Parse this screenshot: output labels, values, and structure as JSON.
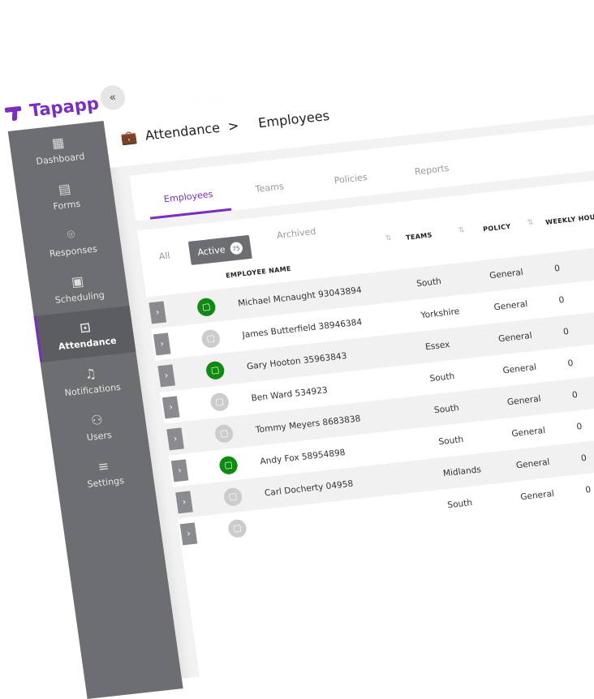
{
  "app": {
    "brand": "Tapapp",
    "collapse_icon": "«",
    "accent": "#7b2fbe",
    "status_active": "#0f8a12",
    "status_inactive": "#cccccc"
  },
  "sidebar": {
    "items": [
      {
        "label": "Dashboard",
        "icon": "dashboard-icon"
      },
      {
        "label": "Forms",
        "icon": "form-icon"
      },
      {
        "label": "Responses",
        "icon": "location-pin-icon"
      },
      {
        "label": "Scheduling",
        "icon": "calendar-icon"
      },
      {
        "label": "Attendance",
        "icon": "briefcase-clock-icon",
        "active": true
      },
      {
        "label": "Notifications",
        "icon": "bell-icon"
      },
      {
        "label": "Users",
        "icon": "users-icon"
      },
      {
        "label": "Settings",
        "icon": "sliders-icon"
      }
    ]
  },
  "breadcrumb": {
    "parent": "Attendance",
    "separator": ">",
    "current": "Employees"
  },
  "tabs": [
    "Employees",
    "Teams",
    "Policies",
    "Reports"
  ],
  "filters": {
    "all": "All",
    "active": "Active",
    "active_count": "75",
    "archived": "Archived"
  },
  "table": {
    "headers": {
      "name": "EMPLOYEE NAME",
      "teams": "TEAMS",
      "policy": "POLICY",
      "hours": "WEEKLY HOURS"
    },
    "rows": [
      {
        "name": "Michael Mcnaught 93043894",
        "team": "South",
        "policy": "General",
        "hours": "0",
        "active": true
      },
      {
        "name": "James Butterfield 38946384",
        "team": "Yorkshire",
        "policy": "General",
        "hours": "0",
        "active": false
      },
      {
        "name": "Gary Hooton 35963843",
        "team": "Essex",
        "policy": "General",
        "hours": "0",
        "active": true
      },
      {
        "name": "Ben Ward 534923",
        "team": "South",
        "policy": "General",
        "hours": "0",
        "active": false
      },
      {
        "name": "Tommy Meyers 8683838",
        "team": "South",
        "policy": "General",
        "hours": "0",
        "active": false
      },
      {
        "name": "Andy Fox 58954898",
        "team": "South",
        "policy": "General",
        "hours": "0",
        "active": true
      },
      {
        "name": "Carl Docherty 04958",
        "team": "Midlands",
        "policy": "General",
        "hours": "0",
        "active": false
      },
      {
        "name": "",
        "team": "South",
        "policy": "General",
        "hours": "0",
        "active": false
      }
    ]
  }
}
